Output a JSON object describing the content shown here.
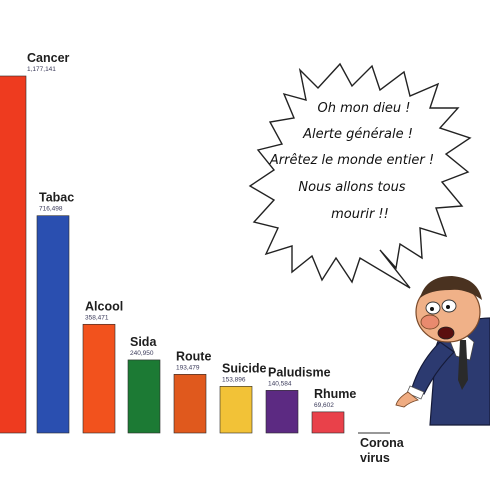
{
  "chart_data": {
    "type": "bar",
    "categories": [
      "Cancer",
      "Tabac",
      "Alcool",
      "Sida",
      "Route",
      "Suicide",
      "Paludisme",
      "Rhume",
      "Corona virus"
    ],
    "category_lines": [
      [
        "Cancer"
      ],
      [
        "Tabac"
      ],
      [
        "Alcool"
      ],
      [
        "Sida"
      ],
      [
        "Route"
      ],
      [
        "Suicide"
      ],
      [
        "Paludisme"
      ],
      [
        "Rhume"
      ],
      [
        "Corona",
        "virus"
      ]
    ],
    "values": [
      1177141,
      716498,
      358471,
      240950,
      193479,
      153896,
      140584,
      69602,
      0
    ],
    "value_labels": [
      "1,177,141",
      "716,498",
      "358,471",
      "240,950",
      "193,479",
      "153,896",
      "140,584",
      "69,602",
      ""
    ],
    "colors": [
      "#ee3b1f",
      "#2a4fb0",
      "#f2521d",
      "#1c7a34",
      "#e0591d",
      "#f2c237",
      "#5c2a82",
      "#e9414a",
      "#777777"
    ],
    "ylim": [
      0,
      1177141
    ],
    "grid": false,
    "legend": "none"
  },
  "speech_bubble": {
    "lines": [
      "Oh mon dieu !",
      "Alerte générale !",
      "Arrêtez le monde entier !",
      "Nous allons tous",
      "mourir !!"
    ]
  }
}
